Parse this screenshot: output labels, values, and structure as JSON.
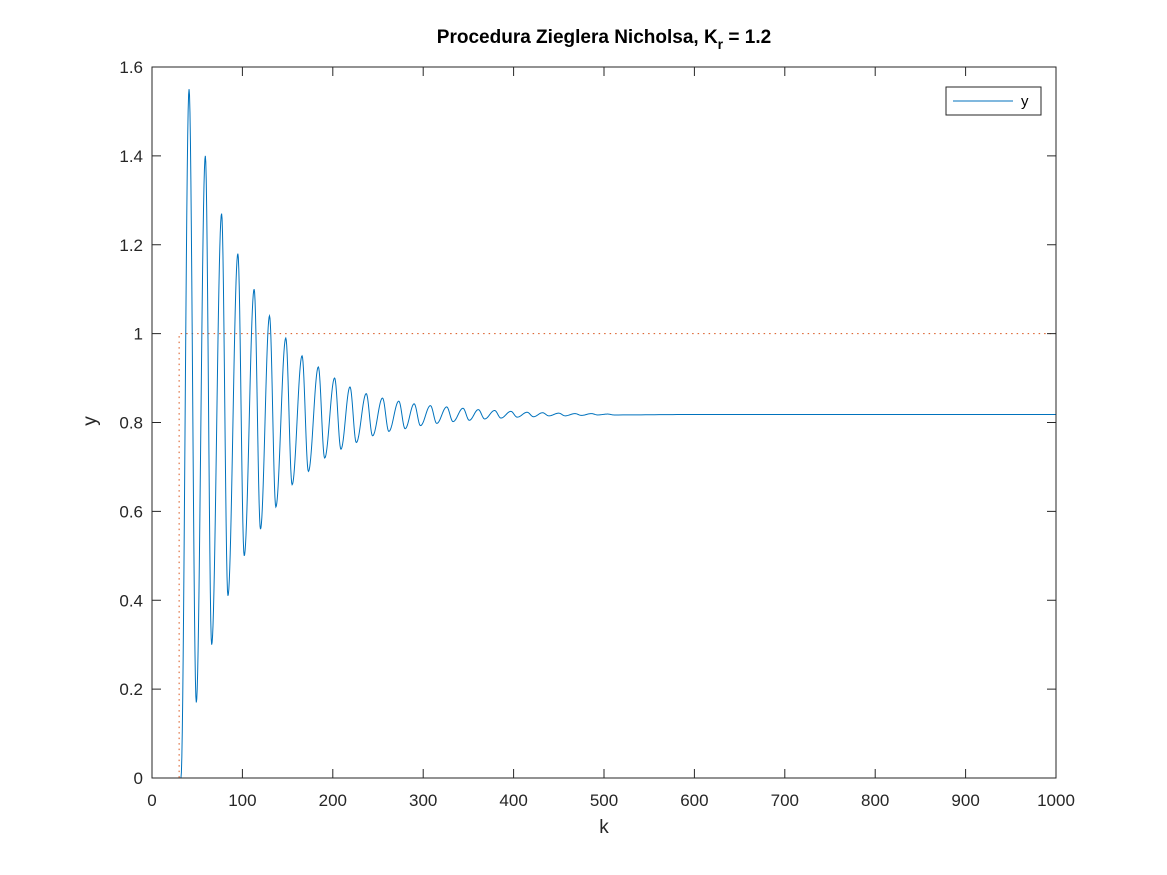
{
  "chart_data": {
    "type": "line",
    "title_main": "Procedura Zieglera Nicholsa, K",
    "title_sub": "r",
    "title_tail": " =  1.2",
    "xlabel": "k",
    "ylabel": "y",
    "xlim": [
      0,
      1000
    ],
    "ylim": [
      0,
      1.6
    ],
    "xticks": [
      0,
      100,
      200,
      300,
      400,
      500,
      600,
      700,
      800,
      900,
      1000
    ],
    "yticks": [
      0,
      0.2,
      0.4,
      0.6,
      0.8,
      1,
      1.2,
      1.4,
      1.6
    ],
    "ytick_labels": [
      "0",
      "0.2",
      "0.4",
      "0.6",
      "0.8",
      "1",
      "1.2",
      "1.4",
      "1.6"
    ],
    "legend": {
      "entries": [
        "y"
      ],
      "location": "top-right"
    },
    "grid": false,
    "series": [
      {
        "name": "y",
        "color": "#0072BD",
        "style": "solid",
        "delay": 32,
        "final_value": 0.818,
        "period": 17.7,
        "peaks": [
          [
            41,
            1.55
          ],
          [
            49,
            0.17
          ],
          [
            59,
            1.4
          ],
          [
            66,
            0.3
          ],
          [
            77,
            1.27
          ],
          [
            84,
            0.41
          ],
          [
            95,
            1.18
          ],
          [
            102,
            0.5
          ],
          [
            113,
            1.1
          ],
          [
            120,
            0.56
          ],
          [
            130,
            1.04
          ],
          [
            137,
            0.61
          ],
          [
            148,
            0.99
          ],
          [
            155,
            0.66
          ],
          [
            166,
            0.95
          ],
          [
            173,
            0.69
          ],
          [
            184,
            0.925
          ],
          [
            191,
            0.72
          ],
          [
            202,
            0.9
          ],
          [
            209,
            0.74
          ],
          [
            219,
            0.88
          ],
          [
            226,
            0.755
          ],
          [
            237,
            0.865
          ],
          [
            244,
            0.77
          ],
          [
            255,
            0.855
          ],
          [
            262,
            0.78
          ],
          [
            273,
            0.848
          ],
          [
            280,
            0.786
          ],
          [
            290,
            0.842
          ],
          [
            297,
            0.793
          ],
          [
            308,
            0.838
          ],
          [
            315,
            0.798
          ],
          [
            326,
            0.835
          ],
          [
            333,
            0.802
          ],
          [
            344,
            0.832
          ],
          [
            351,
            0.805
          ],
          [
            361,
            0.829
          ],
          [
            368,
            0.808
          ],
          [
            379,
            0.827
          ],
          [
            386,
            0.81
          ],
          [
            397,
            0.825
          ],
          [
            404,
            0.812
          ],
          [
            415,
            0.823
          ],
          [
            422,
            0.813
          ],
          [
            432,
            0.822
          ],
          [
            439,
            0.815
          ],
          [
            450,
            0.821
          ],
          [
            457,
            0.815
          ],
          [
            468,
            0.82
          ],
          [
            475,
            0.816
          ],
          [
            486,
            0.82
          ],
          [
            493,
            0.817
          ],
          [
            504,
            0.819
          ],
          [
            511,
            0.817
          ],
          [
            600,
            0.818
          ],
          [
            1000,
            0.818
          ]
        ]
      },
      {
        "name": "setpoint",
        "color": "#D95319",
        "style": "dotted",
        "points": [
          [
            0,
            0
          ],
          [
            30,
            0
          ],
          [
            30,
            1
          ],
          [
            1000,
            1
          ]
        ]
      }
    ]
  }
}
